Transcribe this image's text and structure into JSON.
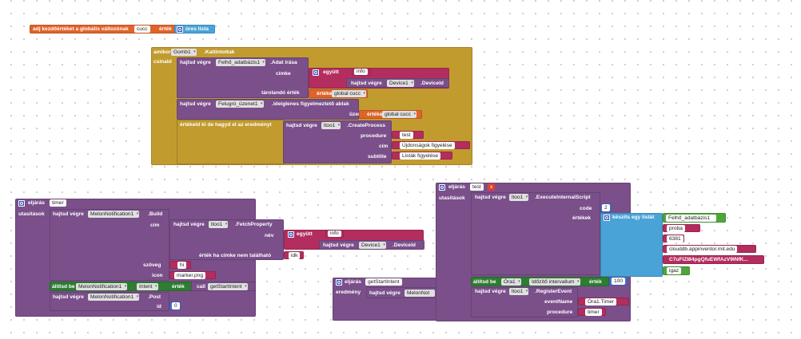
{
  "globals": {
    "label": "adj kezdőértéket a globális változónak",
    "name": "cucc",
    "value_label": "érték",
    "list_label": "üres lista"
  },
  "event": {
    "when": "amikor",
    "component": "Gomb1",
    "event": ".Kattintottak",
    "do": "csinald"
  },
  "set_value": {
    "call": "hajtsd végre",
    "component": "Felhő_adatbázis1",
    "method": ".Adat írása",
    "tag_label": "címke",
    "join_label": "együtt",
    "str_info": "info",
    "call2": "hajtsd végre",
    "device": "Device1",
    "device_id": ".DeviceId",
    "store_label": "tárolandó érték",
    "get_label": "értéke",
    "get_var": "global cucc"
  },
  "notifier": {
    "call": "hajtsd végre",
    "component": "Felugró_üzenet1",
    "method": ".ideiglenes figyelmeztető ablak",
    "msg_label": "üzenet",
    "get_label": "értéke",
    "get_var": "global cucc"
  },
  "ignore_proc": {
    "label": "értékeld ki de hagyd el az eredményt",
    "call": "hajtsd végre",
    "component": "ltoo1",
    "method": ".CreateProcess",
    "proc_label": "procedure",
    "proc_val": "test",
    "title_label": "cím",
    "title_val": "Újdonságok figyelése",
    "subtitle_label": "subtitle",
    "subtitle_val": "Listák figyelése"
  },
  "timer_proc": {
    "label": "eljárás",
    "name": "timer",
    "do": "utasítások",
    "call": "hajtsd végre",
    "component": "MelonNotification1",
    "method": ".Build",
    "cim_label": "cím",
    "fetch_call": "hajtsd végre",
    "fetch_comp": "ltoo1",
    "fetch_method": ".FetchProperty",
    "nev_label": "név",
    "join_label": "együtt",
    "str_info": "info",
    "dev_call": "hajtsd végre",
    "device": "Device1",
    "device_id": ".DeviceId",
    "notfound_label": "érték ha címke nem található",
    "notfound_val": "idk",
    "szoveg_label": "szöveg",
    "szoveg_val": "hi",
    "icon_label": "icon",
    "icon_val": "marker.png",
    "set_label": "állítsd be",
    "set_comp": "MelonNotification1",
    "set_prop": "Intent",
    "set_to": "érték",
    "call_label": "call",
    "call_proc": "getStartIntent",
    "post_call": "hajtsd végre",
    "post_comp": "MelonNotification1",
    "post_method": ".Post",
    "id_label": "id",
    "id_val": "0"
  },
  "getstart_proc": {
    "label": "eljárás",
    "name": "getStartIntent",
    "result": "eredmény",
    "call": "hajtsd végre",
    "component": "MelonNot"
  },
  "test_proc": {
    "label": "eljárás",
    "name": "test",
    "param": "x",
    "do": "utasítások",
    "call": "hajtsd végre",
    "component": "ltoo1",
    "method": ".ExecuteInternalScript",
    "code_label": "code",
    "code_val": "2",
    "args_label": "értékek",
    "makelist": "készíts egy listát",
    "items": [
      "Felhő_adatbázis1",
      "proba",
      "6381",
      "clouddb.appinventor.mit.edu",
      "C7uFIZI84pgQfuEWfAzV9lNfK...",
      "igaz"
    ],
    "set_label": "állítsd be",
    "set_comp": "Óra1",
    "set_prop": "Időzítő intervallum",
    "set_to": "érték",
    "set_val": "100",
    "reg_call": "hajtsd végre",
    "reg_comp": "ltoo1",
    "reg_method": ".RegisterEvent",
    "ev_label": "eventName",
    "ev_val": "Óra1.Timer",
    "proc_label": "procedure",
    "proc_val": "timer"
  }
}
